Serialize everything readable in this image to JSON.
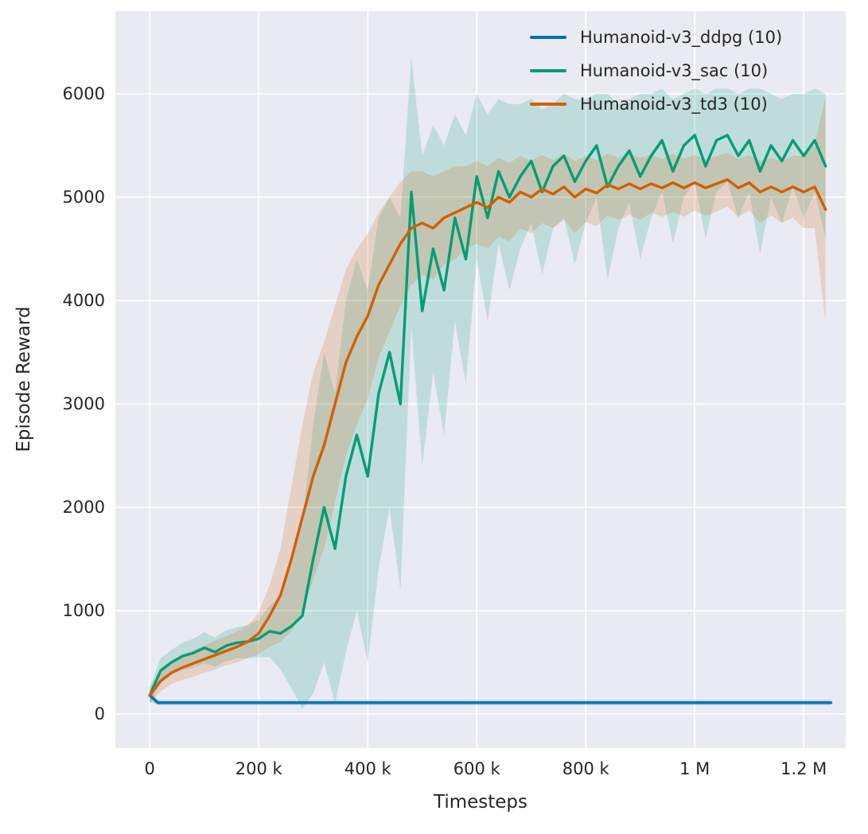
{
  "chart_data": {
    "type": "line",
    "title": "",
    "xlabel": "Timesteps",
    "ylabel": "Episode Reward",
    "xlim": [
      -63000,
      1277000
    ],
    "ylim": [
      -330,
      6800
    ],
    "grid": true,
    "legend_position": "upper right",
    "background": "#eaeaf2",
    "grid_color": "#ffffff",
    "x_ticks": [
      {
        "value": 0,
        "label": "0"
      },
      {
        "value": 200000,
        "label": "200 k"
      },
      {
        "value": 400000,
        "label": "400 k"
      },
      {
        "value": 600000,
        "label": "600 k"
      },
      {
        "value": 800000,
        "label": "800 k"
      },
      {
        "value": 1000000,
        "label": "1 M"
      },
      {
        "value": 1200000,
        "label": "1.2 M"
      }
    ],
    "y_ticks": [
      {
        "value": 0,
        "label": "0"
      },
      {
        "value": 1000,
        "label": "1000"
      },
      {
        "value": 2000,
        "label": "2000"
      },
      {
        "value": 3000,
        "label": "3000"
      },
      {
        "value": 4000,
        "label": "4000"
      },
      {
        "value": 5000,
        "label": "5000"
      },
      {
        "value": 6000,
        "label": "6000"
      }
    ],
    "series": [
      {
        "name": "Humanoid-v3_ddpg (10)",
        "color": "#0173b2",
        "x": [
          0,
          15000,
          1250000
        ],
        "mean": [
          180,
          110,
          110
        ],
        "spread": [
          60,
          25,
          25
        ]
      },
      {
        "name": "Humanoid-v3_sac (10)",
        "color": "#029e73",
        "x": [
          0,
          20000,
          40000,
          60000,
          80000,
          100000,
          120000,
          140000,
          160000,
          180000,
          200000,
          220000,
          240000,
          260000,
          280000,
          300000,
          320000,
          340000,
          360000,
          380000,
          400000,
          420000,
          440000,
          460000,
          480000,
          500000,
          520000,
          540000,
          560000,
          580000,
          600000,
          620000,
          640000,
          660000,
          680000,
          700000,
          720000,
          740000,
          760000,
          780000,
          800000,
          820000,
          840000,
          860000,
          880000,
          900000,
          920000,
          940000,
          960000,
          980000,
          1000000,
          1020000,
          1040000,
          1060000,
          1080000,
          1100000,
          1120000,
          1140000,
          1160000,
          1180000,
          1200000,
          1220000,
          1240000
        ],
        "mean": [
          180,
          420,
          500,
          560,
          590,
          640,
          600,
          660,
          690,
          700,
          730,
          800,
          780,
          850,
          950,
          1500,
          2000,
          1600,
          2300,
          2700,
          2300,
          3100,
          3500,
          3000,
          5050,
          3900,
          4500,
          4100,
          4800,
          4400,
          5200,
          4800,
          5250,
          5000,
          5200,
          5350,
          5050,
          5300,
          5400,
          5150,
          5350,
          5500,
          5100,
          5300,
          5450,
          5200,
          5400,
          5550,
          5250,
          5500,
          5600,
          5300,
          5550,
          5600,
          5400,
          5550,
          5250,
          5500,
          5350,
          5550,
          5400,
          5550,
          5300
        ],
        "spread": [
          80,
          120,
          120,
          130,
          140,
          150,
          140,
          150,
          150,
          160,
          180,
          250,
          350,
          600,
          900,
          1300,
          1500,
          1500,
          1700,
          1700,
          1800,
          1700,
          1500,
          1800,
          1300,
          1500,
          1200,
          1400,
          1000,
          1200,
          800,
          1000,
          700,
          900,
          700,
          600,
          800,
          600,
          600,
          800,
          600,
          500,
          900,
          600,
          500,
          800,
          600,
          500,
          700,
          500,
          450,
          700,
          500,
          450,
          600,
          500,
          800,
          500,
          600,
          450,
          600,
          500,
          700
        ]
      },
      {
        "name": "Humanoid-v3_td3 (10)",
        "color": "#d55e00",
        "x": [
          0,
          20000,
          40000,
          60000,
          80000,
          100000,
          120000,
          140000,
          160000,
          180000,
          200000,
          220000,
          240000,
          260000,
          280000,
          300000,
          320000,
          340000,
          360000,
          380000,
          400000,
          420000,
          440000,
          460000,
          480000,
          500000,
          520000,
          540000,
          560000,
          580000,
          600000,
          620000,
          640000,
          660000,
          680000,
          700000,
          720000,
          740000,
          760000,
          780000,
          800000,
          820000,
          840000,
          860000,
          880000,
          900000,
          920000,
          940000,
          960000,
          980000,
          1000000,
          1020000,
          1040000,
          1060000,
          1080000,
          1100000,
          1120000,
          1140000,
          1160000,
          1180000,
          1200000,
          1220000,
          1240000
        ],
        "mean": [
          180,
          320,
          400,
          450,
          490,
          530,
          570,
          610,
          650,
          700,
          780,
          950,
          1150,
          1500,
          1900,
          2300,
          2600,
          3000,
          3400,
          3650,
          3850,
          4150,
          4350,
          4550,
          4700,
          4750,
          4700,
          4800,
          4850,
          4900,
          4950,
          4900,
          5000,
          4950,
          5050,
          5000,
          5080,
          5030,
          5100,
          5000,
          5080,
          5040,
          5120,
          5080,
          5130,
          5080,
          5130,
          5090,
          5140,
          5090,
          5140,
          5090,
          5130,
          5170,
          5090,
          5140,
          5050,
          5100,
          5050,
          5100,
          5050,
          5100,
          4880
        ],
        "spread": [
          80,
          100,
          110,
          120,
          130,
          130,
          140,
          140,
          150,
          160,
          200,
          300,
          450,
          700,
          900,
          1000,
          1000,
          950,
          900,
          850,
          800,
          700,
          650,
          600,
          550,
          500,
          500,
          450,
          450,
          400,
          400,
          400,
          380,
          380,
          350,
          350,
          330,
          330,
          320,
          350,
          320,
          320,
          300,
          300,
          300,
          300,
          280,
          280,
          280,
          280,
          270,
          270,
          270,
          260,
          280,
          270,
          300,
          280,
          300,
          300,
          350,
          400,
          1100
        ]
      }
    ]
  }
}
